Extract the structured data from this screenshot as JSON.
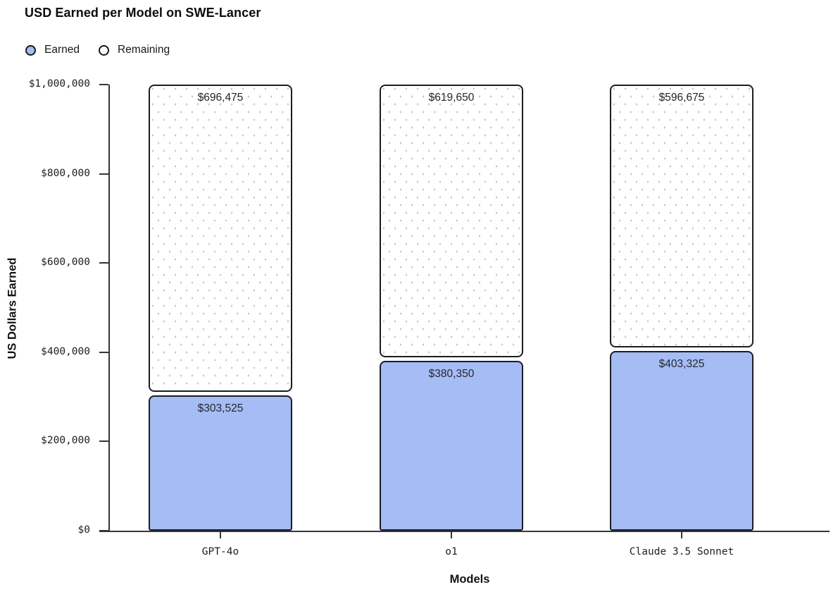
{
  "title": "USD Earned per Model on SWE-Lancer",
  "legend": [
    {
      "label": "Earned",
      "swatch": "filled-circle",
      "color": "#a5bcf4"
    },
    {
      "label": "Remaining",
      "swatch": "hollow-circle",
      "color": "#ffffff"
    }
  ],
  "colors": {
    "earned_fill": "#a5bcf4",
    "remaining_fill": "#ffffff",
    "bar_border": "#1a1d24",
    "axis": "#34363b",
    "dot_pattern": "#c6c6c6"
  },
  "chart_data": {
    "type": "bar",
    "stacked": true,
    "title": "USD Earned per Model on SWE-Lancer",
    "xlabel": "Models",
    "ylabel": "US Dollars Earned",
    "categories": [
      "GPT-4o",
      "o1",
      "Claude 3.5 Sonnet"
    ],
    "series": [
      {
        "name": "Earned",
        "values": [
          303525,
          380350,
          403325
        ],
        "labels": [
          "$303,525",
          "$380,350",
          "$403,325"
        ]
      },
      {
        "name": "Remaining",
        "values": [
          696475,
          619650,
          596675
        ],
        "labels": [
          "$696,475",
          "$619,650",
          "$596,675"
        ]
      }
    ],
    "total_per_bar": 1000000,
    "ylim": [
      0,
      1000000
    ],
    "y_ticks": [
      {
        "value": 0,
        "label": "$0"
      },
      {
        "value": 200000,
        "label": "$200,000"
      },
      {
        "value": 400000,
        "label": "$400,000"
      },
      {
        "value": 600000,
        "label": "$600,000"
      },
      {
        "value": 800000,
        "label": "$800,000"
      },
      {
        "value": 1000000,
        "label": "$1,000,000"
      }
    ],
    "grid": false,
    "legend_position": "top-left"
  }
}
